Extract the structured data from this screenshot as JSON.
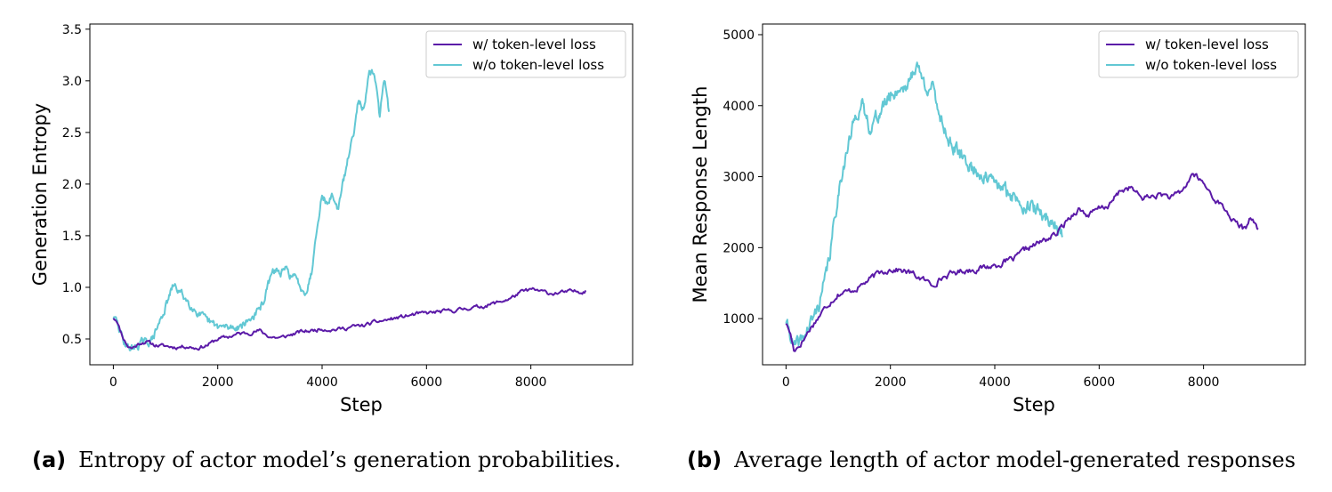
{
  "chart_data": [
    {
      "type": "line",
      "caption_tag": "(a)",
      "caption_text": "Entropy of actor model’s generation probabilities.",
      "xlabel": "Step",
      "ylabel": "Generation Entropy",
      "xlim": [
        -450,
        9950
      ],
      "ylim": [
        0.25,
        3.55
      ],
      "xticks": [
        0,
        2000,
        4000,
        6000,
        8000
      ],
      "xtick_labels": [
        "0",
        "2000",
        "4000",
        "6000",
        "8000"
      ],
      "yticks": [
        0.5,
        1.0,
        1.5,
        2.0,
        2.5,
        3.0,
        3.5
      ],
      "ytick_labels": [
        "0.5",
        "1.0",
        "1.5",
        "2.0",
        "2.5",
        "3.0",
        "3.5"
      ],
      "legend_position": "top-right",
      "series": [
        {
          "name": "w/ token-level loss",
          "color": "#5b1aa8",
          "noise": 0.015,
          "seed": 11,
          "x": [
            0,
            60,
            120,
            200,
            280,
            350,
            450,
            550,
            650,
            800,
            1000,
            1200,
            1400,
            1600,
            1800,
            2000,
            2200,
            2400,
            2600,
            2800,
            3000,
            3200,
            3400,
            3600,
            3800,
            4000,
            4200,
            4400,
            4600,
            4800,
            5000,
            5200,
            5400,
            5600,
            5800,
            6000,
            6200,
            6400,
            6600,
            6800,
            7000,
            7200,
            7400,
            7600,
            7700,
            7800,
            8000,
            8200,
            8400,
            8600,
            8800,
            9000,
            9050
          ],
          "y": [
            0.7,
            0.69,
            0.6,
            0.5,
            0.43,
            0.41,
            0.44,
            0.47,
            0.47,
            0.44,
            0.43,
            0.42,
            0.43,
            0.41,
            0.44,
            0.5,
            0.52,
            0.55,
            0.56,
            0.58,
            0.52,
            0.51,
            0.54,
            0.57,
            0.58,
            0.6,
            0.59,
            0.6,
            0.62,
            0.63,
            0.66,
            0.68,
            0.7,
            0.72,
            0.74,
            0.75,
            0.76,
            0.77,
            0.78,
            0.8,
            0.81,
            0.83,
            0.86,
            0.89,
            0.92,
            0.95,
            0.98,
            0.96,
            0.94,
            0.95,
            0.96,
            0.96,
            0.97
          ]
        },
        {
          "name": "w/o token-level loss",
          "color": "#62c8d4",
          "noise": 0.03,
          "seed": 29,
          "x": [
            0,
            60,
            120,
            200,
            280,
            350,
            450,
            550,
            650,
            750,
            850,
            950,
            1050,
            1150,
            1250,
            1400,
            1600,
            1800,
            2000,
            2200,
            2400,
            2600,
            2800,
            2900,
            3000,
            3100,
            3200,
            3300,
            3400,
            3500,
            3600,
            3700,
            3800,
            3900,
            4000,
            4100,
            4200,
            4300,
            4400,
            4500,
            4600,
            4700,
            4800,
            4900,
            5000,
            5100,
            5200,
            5280
          ],
          "y": [
            0.7,
            0.68,
            0.58,
            0.48,
            0.42,
            0.41,
            0.43,
            0.47,
            0.46,
            0.5,
            0.62,
            0.74,
            0.88,
            1.02,
            0.97,
            0.88,
            0.76,
            0.67,
            0.62,
            0.61,
            0.62,
            0.68,
            0.78,
            0.9,
            1.08,
            1.18,
            1.13,
            1.17,
            1.12,
            1.08,
            1.0,
            0.96,
            1.15,
            1.6,
            1.9,
            1.8,
            1.9,
            1.75,
            2.0,
            2.25,
            2.5,
            2.85,
            2.7,
            3.05,
            3.1,
            2.65,
            3.05,
            2.7
          ]
        }
      ]
    },
    {
      "type": "line",
      "caption_tag": "(b)",
      "caption_text": "Average length of actor model-generated responses",
      "xlabel": "Step",
      "ylabel": "Mean Response Length",
      "xlim": [
        -450,
        9950
      ],
      "ylim": [
        350,
        5150
      ],
      "xticks": [
        0,
        2000,
        4000,
        6000,
        8000
      ],
      "xtick_labels": [
        "0",
        "2000",
        "4000",
        "6000",
        "8000"
      ],
      "yticks": [
        1000,
        2000,
        3000,
        4000,
        5000
      ],
      "ytick_labels": [
        "1000",
        "2000",
        "3000",
        "4000",
        "5000"
      ],
      "legend_position": "top-right",
      "series": [
        {
          "name": "w/ token-level loss",
          "color": "#5b1aa8",
          "noise": 35,
          "seed": 17,
          "x": [
            0,
            80,
            150,
            250,
            350,
            450,
            600,
            800,
            1000,
            1200,
            1400,
            1600,
            1800,
            2000,
            2200,
            2400,
            2600,
            2800,
            3000,
            3200,
            3400,
            3600,
            3800,
            4000,
            4200,
            4400,
            4600,
            4800,
            5000,
            5200,
            5400,
            5600,
            5800,
            6000,
            6200,
            6400,
            6600,
            6800,
            7000,
            7200,
            7400,
            7600,
            7800,
            8000,
            8200,
            8400,
            8600,
            8800,
            8900,
            9000,
            9050
          ],
          "y": [
            930,
            800,
            560,
            620,
            720,
            850,
            1000,
            1200,
            1350,
            1380,
            1450,
            1550,
            1650,
            1700,
            1680,
            1640,
            1560,
            1480,
            1580,
            1640,
            1680,
            1690,
            1720,
            1750,
            1800,
            1850,
            1980,
            2050,
            2120,
            2200,
            2400,
            2550,
            2450,
            2550,
            2600,
            2800,
            2850,
            2700,
            2720,
            2750,
            2700,
            2800,
            3050,
            2900,
            2700,
            2550,
            2350,
            2250,
            2450,
            2300,
            2260
          ]
        },
        {
          "name": "w/o token-level loss",
          "color": "#62c8d4",
          "noise": 80,
          "seed": 41,
          "x": [
            0,
            80,
            150,
            250,
            350,
            450,
            550,
            650,
            750,
            850,
            950,
            1050,
            1150,
            1250,
            1350,
            1450,
            1600,
            1800,
            2000,
            2200,
            2350,
            2500,
            2650,
            2800,
            3000,
            3200,
            3400,
            3600,
            3800,
            4000,
            4200,
            4400,
            4600,
            4800,
            5000,
            5200,
            5300
          ],
          "y": [
            930,
            800,
            580,
            650,
            760,
            900,
            1050,
            1250,
            1550,
            1950,
            2500,
            3000,
            3300,
            3600,
            3900,
            4000,
            3700,
            3900,
            4150,
            4250,
            4300,
            4600,
            4300,
            4250,
            3750,
            3400,
            3250,
            3100,
            3000,
            2900,
            2800,
            2700,
            2600,
            2520,
            2420,
            2300,
            2150
          ]
        }
      ]
    }
  ]
}
